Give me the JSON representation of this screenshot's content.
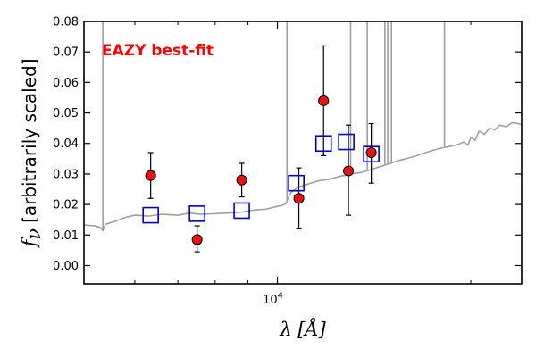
{
  "chart_data": {
    "type": "scatter",
    "xlabel": "λ [Å]",
    "ylabel_symbol": "f",
    "ylabel_subscript": "ν",
    "ylabel_text": "[arbitrarily scaled]",
    "x_scale": "log",
    "xlim": [
      5000,
      24000
    ],
    "ylim": [
      -0.006,
      0.08
    ],
    "x_tick_label_base": "10",
    "x_tick_label_exponent": "4",
    "y_ticks": [
      0.0,
      0.01,
      0.02,
      0.03,
      0.04,
      0.05,
      0.06,
      0.07,
      0.08
    ],
    "y_tick_labels": [
      "0.00",
      "0.01",
      "0.02",
      "0.03",
      "0.04",
      "0.05",
      "0.06",
      "0.07",
      "0.08"
    ],
    "annotation": "EAZY best-fit",
    "annotation_color": "#ff0000",
    "colors": {
      "template": "#a0a0a0",
      "model_marker": "#0000cc",
      "observed_fill": "#ee1111",
      "observed_edge": "#000000"
    },
    "series": [
      {
        "kind": "template_line",
        "points": [
          [
            5000,
            0.0133
          ],
          [
            5200,
            0.013
          ],
          [
            5300,
            0.0125
          ],
          [
            5350,
            0.0115
          ],
          [
            5400,
            0.0135
          ],
          [
            5600,
            0.0145
          ],
          [
            5800,
            0.0158
          ],
          [
            6000,
            0.0165
          ],
          [
            6300,
            0.0162
          ],
          [
            6600,
            0.0168
          ],
          [
            7000,
            0.0165
          ],
          [
            7300,
            0.0172
          ],
          [
            7600,
            0.0168
          ],
          [
            8000,
            0.017
          ],
          [
            8400,
            0.0172
          ],
          [
            8800,
            0.0175
          ],
          [
            9200,
            0.0182
          ],
          [
            9600,
            0.0185
          ],
          [
            9900,
            0.0192
          ],
          [
            10200,
            0.0198
          ],
          [
            10300,
            0.0202
          ],
          [
            10500,
            0.024
          ],
          [
            10800,
            0.0258
          ],
          [
            11200,
            0.0268
          ],
          [
            11600,
            0.0278
          ],
          [
            12000,
            0.0282
          ],
          [
            12500,
            0.0292
          ],
          [
            13000,
            0.03
          ],
          [
            13500,
            0.0305
          ],
          [
            14000,
            0.0315
          ],
          [
            14500,
            0.0325
          ],
          [
            15000,
            0.0335
          ],
          [
            15500,
            0.0345
          ],
          [
            16000,
            0.0352
          ],
          [
            16500,
            0.036
          ],
          [
            17000,
            0.037
          ],
          [
            17500,
            0.0378
          ],
          [
            18000,
            0.0385
          ],
          [
            18500,
            0.039
          ],
          [
            19000,
            0.0395
          ],
          [
            19500,
            0.0405
          ],
          [
            19800,
            0.0395
          ],
          [
            20000,
            0.042
          ],
          [
            20300,
            0.041
          ],
          [
            20600,
            0.044
          ],
          [
            21000,
            0.043
          ],
          [
            21400,
            0.045
          ],
          [
            21800,
            0.0445
          ],
          [
            22200,
            0.046
          ],
          [
            22700,
            0.0455
          ],
          [
            23200,
            0.0468
          ],
          [
            23700,
            0.0465
          ],
          [
            24000,
            0.0462
          ]
        ],
        "emission_spikes": [
          [
            5350,
            0.08
          ],
          [
            10350,
            0.08
          ],
          [
            13000,
            0.08
          ],
          [
            13800,
            0.08
          ],
          [
            14700,
            0.08
          ],
          [
            14850,
            0.08
          ],
          [
            15050,
            0.08
          ],
          [
            18200,
            0.08
          ]
        ]
      },
      {
        "kind": "model_photometry",
        "marker": "square",
        "points": [
          [
            6350,
            0.0165
          ],
          [
            7500,
            0.017
          ],
          [
            8800,
            0.018
          ],
          [
            10700,
            0.027
          ],
          [
            11800,
            0.04
          ],
          [
            12800,
            0.0405
          ],
          [
            14000,
            0.0365
          ]
        ]
      },
      {
        "kind": "observed_photometry",
        "marker": "circle",
        "points": [
          {
            "x": 6350,
            "y": 0.0295,
            "err_low": 0.0075,
            "err_high": 0.0075
          },
          {
            "x": 7500,
            "y": 0.0085,
            "err_low": 0.004,
            "err_high": 0.0045
          },
          {
            "x": 8800,
            "y": 0.028,
            "err_low": 0.0055,
            "err_high": 0.0055
          },
          {
            "x": 10800,
            "y": 0.022,
            "err_low": 0.01,
            "err_high": 0.01
          },
          {
            "x": 11800,
            "y": 0.054,
            "err_low": 0.018,
            "err_high": 0.018
          },
          {
            "x": 12900,
            "y": 0.031,
            "err_low": 0.0145,
            "err_high": 0.015
          },
          {
            "x": 14000,
            "y": 0.037,
            "err_low": 0.01,
            "err_high": 0.0095
          }
        ]
      }
    ]
  }
}
